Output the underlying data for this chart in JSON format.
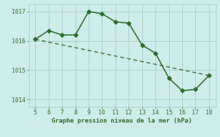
{
  "x": [
    5,
    6,
    7,
    8,
    9,
    10,
    11,
    12,
    13,
    14,
    15,
    16,
    17,
    18
  ],
  "y_main": [
    1016.05,
    1016.35,
    1016.2,
    1016.2,
    1017.0,
    1016.92,
    1016.65,
    1016.6,
    1015.85,
    1015.58,
    1014.73,
    1014.3,
    1014.35,
    1014.82
  ],
  "y_trend_x": [
    5,
    18
  ],
  "y_trend_y": [
    1016.05,
    1014.82
  ],
  "line_color": "#2d6e2d",
  "bg_color": "#ceecea",
  "grid_color": "#aacfcc",
  "xlabel": "Graphe pression niveau de la mer (hPa)",
  "xlim": [
    4.5,
    18.5
  ],
  "ylim": [
    1013.75,
    1017.25
  ],
  "yticks": [
    1014,
    1015,
    1016,
    1017
  ],
  "xticks": [
    5,
    6,
    7,
    8,
    9,
    10,
    11,
    12,
    13,
    14,
    15,
    16,
    17,
    18
  ],
  "marker": "D",
  "markersize": 3,
  "linewidth": 1.2,
  "trend_linewidth": 1.0
}
